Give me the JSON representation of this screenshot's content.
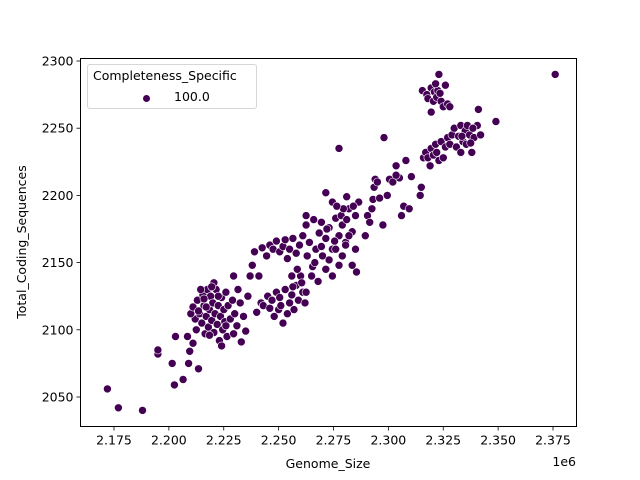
{
  "chart_data": {
    "type": "scatter",
    "title": "",
    "xlabel": "Genome_Size",
    "ylabel": "Total_Coding_Sequences",
    "x_offset_label": "1e6",
    "xlim": [
      2.1625,
      2.3875
    ],
    "ylim": [
      2027,
      2306
    ],
    "x_ticks": [
      2.175,
      2.2,
      2.225,
      2.25,
      2.275,
      2.3,
      2.325,
      2.35,
      2.375
    ],
    "x_tick_labels": [
      "2.175",
      "2.200",
      "2.225",
      "2.250",
      "2.275",
      "2.300",
      "2.325",
      "2.350",
      "2.375"
    ],
    "y_ticks": [
      2050,
      2100,
      2150,
      2200,
      2250,
      2300
    ],
    "y_tick_labels": [
      "2050",
      "2100",
      "2150",
      "2200",
      "2250",
      "2300"
    ],
    "grid": false,
    "legend": {
      "position": "upper left",
      "title": "Completeness_Specific",
      "entries": [
        {
          "label": "100.0",
          "color": "#440154"
        }
      ]
    },
    "series": [
      {
        "name": "100.0",
        "color": "#440154",
        "points": [
          [
            2.172,
            2056
          ],
          [
            2.177,
            2042
          ],
          [
            2.188,
            2040
          ],
          [
            2.195,
            2082
          ],
          [
            2.195,
            2085
          ],
          [
            2.2025,
            2059
          ],
          [
            2.2015,
            2075
          ],
          [
            2.203,
            2095
          ],
          [
            2.2065,
            2063
          ],
          [
            2.209,
            2075
          ],
          [
            2.2095,
            2084
          ],
          [
            2.2085,
            2095
          ],
          [
            2.211,
            2090
          ],
          [
            2.2135,
            2071
          ],
          [
            2.212,
            2108
          ],
          [
            2.21,
            2112
          ],
          [
            2.211,
            2117
          ],
          [
            2.2125,
            2100
          ],
          [
            2.213,
            2122
          ],
          [
            2.214,
            2112
          ],
          [
            2.215,
            2105
          ],
          [
            2.2155,
            2126
          ],
          [
            2.216,
            2118
          ],
          [
            2.2165,
            2097
          ],
          [
            2.217,
            2110
          ],
          [
            2.2175,
            2130
          ],
          [
            2.218,
            2102
          ],
          [
            2.2185,
            2115
          ],
          [
            2.219,
            2125
          ],
          [
            2.2195,
            2107
          ],
          [
            2.22,
            2120
          ],
          [
            2.2205,
            2098
          ],
          [
            2.221,
            2112
          ],
          [
            2.2215,
            2130
          ],
          [
            2.222,
            2104
          ],
          [
            2.2225,
            2118
          ],
          [
            2.223,
            2092
          ],
          [
            2.2235,
            2110
          ],
          [
            2.224,
            2124
          ],
          [
            2.2245,
            2100
          ],
          [
            2.225,
            2115
          ],
          [
            2.2255,
            2106
          ],
          [
            2.226,
            2128
          ],
          [
            2.2265,
            2095
          ],
          [
            2.227,
            2118
          ],
          [
            2.228,
            2108
          ],
          [
            2.229,
            2122
          ],
          [
            2.2295,
            2140
          ],
          [
            2.23,
            2112
          ],
          [
            2.231,
            2103
          ],
          [
            2.2315,
            2130
          ],
          [
            2.2325,
            2120
          ],
          [
            2.233,
            2091
          ],
          [
            2.234,
            2110
          ],
          [
            2.235,
            2099
          ],
          [
            2.236,
            2125
          ],
          [
            2.237,
            2140
          ],
          [
            2.238,
            2148
          ],
          [
            2.2145,
            2130
          ],
          [
            2.2205,
            2135
          ],
          [
            2.216,
            2123
          ],
          [
            2.2185,
            2096
          ],
          [
            2.224,
            2088
          ],
          [
            2.226,
            2103
          ],
          [
            2.2195,
            2132
          ],
          [
            2.2225,
            2125
          ],
          [
            2.2295,
            2097
          ],
          [
            2.2135,
            2114
          ],
          [
            2.217,
            2117
          ],
          [
            2.24,
            2113
          ],
          [
            2.242,
            2120
          ],
          [
            2.243,
            2118
          ],
          [
            2.245,
            2125
          ],
          [
            2.246,
            2116
          ],
          [
            2.247,
            2122
          ],
          [
            2.248,
            2110
          ],
          [
            2.249,
            2128
          ],
          [
            2.25,
            2115
          ],
          [
            2.2505,
            2124
          ],
          [
            2.251,
            2118
          ],
          [
            2.252,
            2105
          ],
          [
            2.253,
            2130
          ],
          [
            2.254,
            2112
          ],
          [
            2.255,
            2120
          ],
          [
            2.256,
            2126
          ],
          [
            2.257,
            2115
          ],
          [
            2.258,
            2133
          ],
          [
            2.259,
            2122
          ],
          [
            2.26,
            2140
          ],
          [
            2.261,
            2128
          ],
          [
            2.262,
            2120
          ],
          [
            2.239,
            2158
          ],
          [
            2.241,
            2140
          ],
          [
            2.2425,
            2161
          ],
          [
            2.2445,
            2155
          ],
          [
            2.246,
            2163
          ],
          [
            2.2475,
            2160
          ],
          [
            2.249,
            2166
          ],
          [
            2.2505,
            2158
          ],
          [
            2.252,
            2162
          ],
          [
            2.253,
            2167
          ],
          [
            2.254,
            2153
          ],
          [
            2.255,
            2160
          ],
          [
            2.2565,
            2168
          ],
          [
            2.258,
            2157
          ],
          [
            2.2595,
            2163
          ],
          [
            2.261,
            2170
          ],
          [
            2.2625,
            2178
          ],
          [
            2.264,
            2165
          ],
          [
            2.2655,
            2147
          ],
          [
            2.267,
            2160
          ],
          [
            2.2685,
            2172
          ],
          [
            2.27,
            2155
          ],
          [
            2.2715,
            2168
          ],
          [
            2.273,
            2176
          ],
          [
            2.2745,
            2160
          ],
          [
            2.276,
            2183
          ],
          [
            2.2775,
            2170
          ],
          [
            2.279,
            2178
          ],
          [
            2.2805,
            2165
          ],
          [
            2.282,
            2190
          ],
          [
            2.2835,
            2173
          ],
          [
            2.285,
            2185
          ],
          [
            2.2865,
            2195
          ],
          [
            2.281,
            2199
          ],
          [
            2.284,
            2192
          ],
          [
            2.2715,
            2202
          ],
          [
            2.266,
            2182
          ],
          [
            2.2625,
            2185
          ],
          [
            2.2585,
            2145
          ],
          [
            2.2605,
            2135
          ],
          [
            2.263,
            2155
          ],
          [
            2.265,
            2140
          ],
          [
            2.2665,
            2150
          ],
          [
            2.268,
            2136
          ],
          [
            2.2695,
            2162
          ],
          [
            2.2715,
            2145
          ],
          [
            2.273,
            2152
          ],
          [
            2.2745,
            2140
          ],
          [
            2.276,
            2160
          ],
          [
            2.2775,
            2148
          ],
          [
            2.279,
            2155
          ],
          [
            2.2805,
            2163
          ],
          [
            2.282,
            2170
          ],
          [
            2.2835,
            2148
          ],
          [
            2.285,
            2160
          ],
          [
            2.2855,
            2143
          ],
          [
            2.256,
            2140
          ],
          [
            2.2625,
            2128
          ],
          [
            2.2565,
            2132
          ],
          [
            2.272,
            2175
          ],
          [
            2.2755,
            2166
          ],
          [
            2.2785,
            2185
          ],
          [
            2.2795,
            2190
          ],
          [
            2.281,
            2182
          ],
          [
            2.2745,
            2195
          ],
          [
            2.2765,
            2192
          ],
          [
            2.2695,
            2180
          ],
          [
            2.2775,
            2235
          ],
          [
            2.2905,
            2185
          ],
          [
            2.2925,
            2190
          ],
          [
            2.293,
            2197
          ],
          [
            2.2935,
            2206
          ],
          [
            2.294,
            2212
          ],
          [
            2.295,
            2210
          ],
          [
            2.296,
            2198
          ],
          [
            2.2975,
            2178
          ],
          [
            2.298,
            2243
          ],
          [
            2.2995,
            2200
          ],
          [
            2.3005,
            2212
          ],
          [
            2.302,
            2210
          ],
          [
            2.3035,
            2222
          ],
          [
            2.305,
            2213
          ],
          [
            2.306,
            2185
          ],
          [
            2.307,
            2192
          ],
          [
            2.308,
            2226
          ],
          [
            2.3095,
            2190
          ],
          [
            2.3105,
            2214
          ],
          [
            2.3145,
            2200
          ],
          [
            2.315,
            2206
          ],
          [
            2.2895,
            2170
          ],
          [
            2.2915,
            2180
          ],
          [
            2.3035,
            2215
          ],
          [
            2.316,
            2228
          ],
          [
            2.317,
            2232
          ],
          [
            2.318,
            2228
          ],
          [
            2.319,
            2222
          ],
          [
            2.3195,
            2235
          ],
          [
            2.3205,
            2230
          ],
          [
            2.3215,
            2238
          ],
          [
            2.322,
            2232
          ],
          [
            2.323,
            2226
          ],
          [
            2.324,
            2240
          ],
          [
            2.325,
            2228
          ],
          [
            2.326,
            2236
          ],
          [
            2.327,
            2243
          ],
          [
            2.328,
            2238
          ],
          [
            2.329,
            2245
          ],
          [
            2.33,
            2250
          ],
          [
            2.331,
            2236
          ],
          [
            2.332,
            2244
          ],
          [
            2.333,
            2252
          ],
          [
            2.334,
            2240
          ],
          [
            2.335,
            2248
          ],
          [
            2.336,
            2252
          ],
          [
            2.337,
            2245
          ],
          [
            2.338,
            2232
          ],
          [
            2.339,
            2243
          ],
          [
            2.3405,
            2252
          ],
          [
            2.333,
            2232
          ],
          [
            2.3355,
            2238
          ],
          [
            2.3385,
            2250
          ],
          [
            2.341,
            2264
          ],
          [
            2.349,
            2255
          ],
          [
            2.342,
            2245
          ],
          [
            2.3375,
            2239
          ],
          [
            2.3335,
            2244
          ],
          [
            2.3155,
            2278
          ],
          [
            2.3175,
            2275
          ],
          [
            2.318,
            2272
          ],
          [
            2.3195,
            2280
          ],
          [
            2.3205,
            2270
          ],
          [
            2.321,
            2277
          ],
          [
            2.322,
            2273
          ],
          [
            2.3225,
            2278
          ],
          [
            2.323,
            2290
          ],
          [
            2.324,
            2270
          ],
          [
            2.325,
            2266
          ],
          [
            2.326,
            2282
          ],
          [
            2.327,
            2268
          ],
          [
            2.328,
            2266
          ],
          [
            2.3195,
            2262
          ],
          [
            2.3215,
            2283
          ],
          [
            2.3235,
            2276
          ],
          [
            2.376,
            2290
          ]
        ]
      }
    ]
  }
}
